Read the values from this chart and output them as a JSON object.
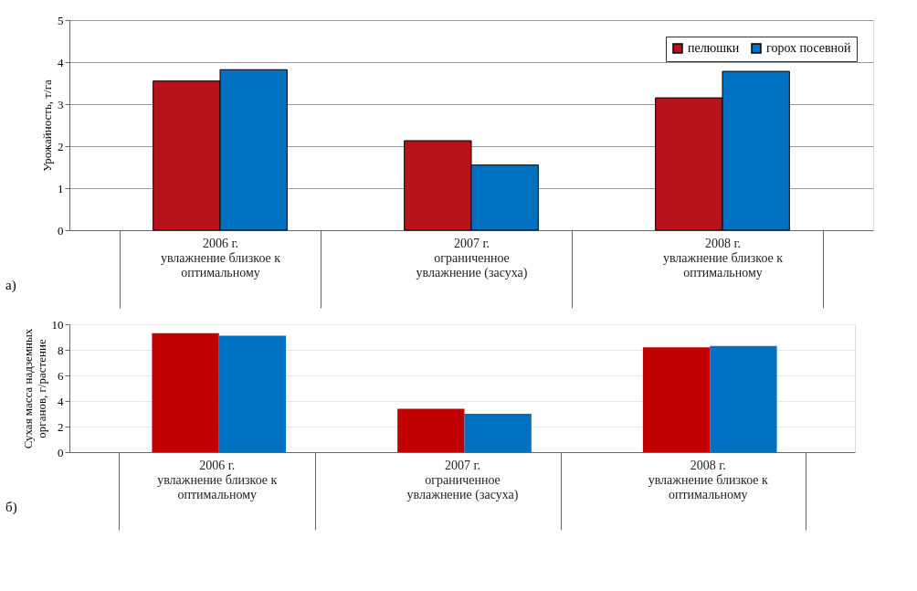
{
  "chart_data": [
    {
      "type": "bar",
      "ylabel": "Урожайность, т/га",
      "categories": [
        "2006 г.\nувлажнение близкое к\nоптимальному",
        "2007 г.\nограниченное\nувлажнение (засуха)",
        "2008 г.\nувлажнение близкое к\nоптимальному"
      ],
      "series": [
        {
          "name": "пелюшки",
          "color": "#b5121b",
          "values": [
            3.55,
            2.13,
            3.15
          ]
        },
        {
          "name": "горох посевной",
          "color": "#0070c0",
          "values": [
            3.82,
            1.55,
            3.78
          ]
        }
      ],
      "ylim": [
        0,
        5
      ],
      "yticks": [
        0,
        1,
        2,
        3,
        4,
        5
      ],
      "grid": "y",
      "legend": "top right",
      "annotations": [
        "а)"
      ]
    },
    {
      "type": "bar",
      "ylabel": "Сухая масса надземных\nорганов, г/растение",
      "categories": [
        "2006 г.\nувлажнение близкое к\nоптимальному",
        "2007 г.\nограниченное\nувлажнение (засуха)",
        "2008 г.\nувлажнение близкое к\nоптимальному"
      ],
      "series": [
        {
          "color": "#c00000",
          "values": [
            9.3,
            3.4,
            8.2
          ]
        },
        {
          "color": "#0070c0",
          "values": [
            9.1,
            3.0,
            8.3
          ]
        }
      ],
      "ylim": [
        0,
        10
      ],
      "yticks": [
        0,
        2,
        4,
        6,
        8,
        10
      ],
      "grid": "y",
      "annotations": [
        "б)"
      ]
    }
  ]
}
